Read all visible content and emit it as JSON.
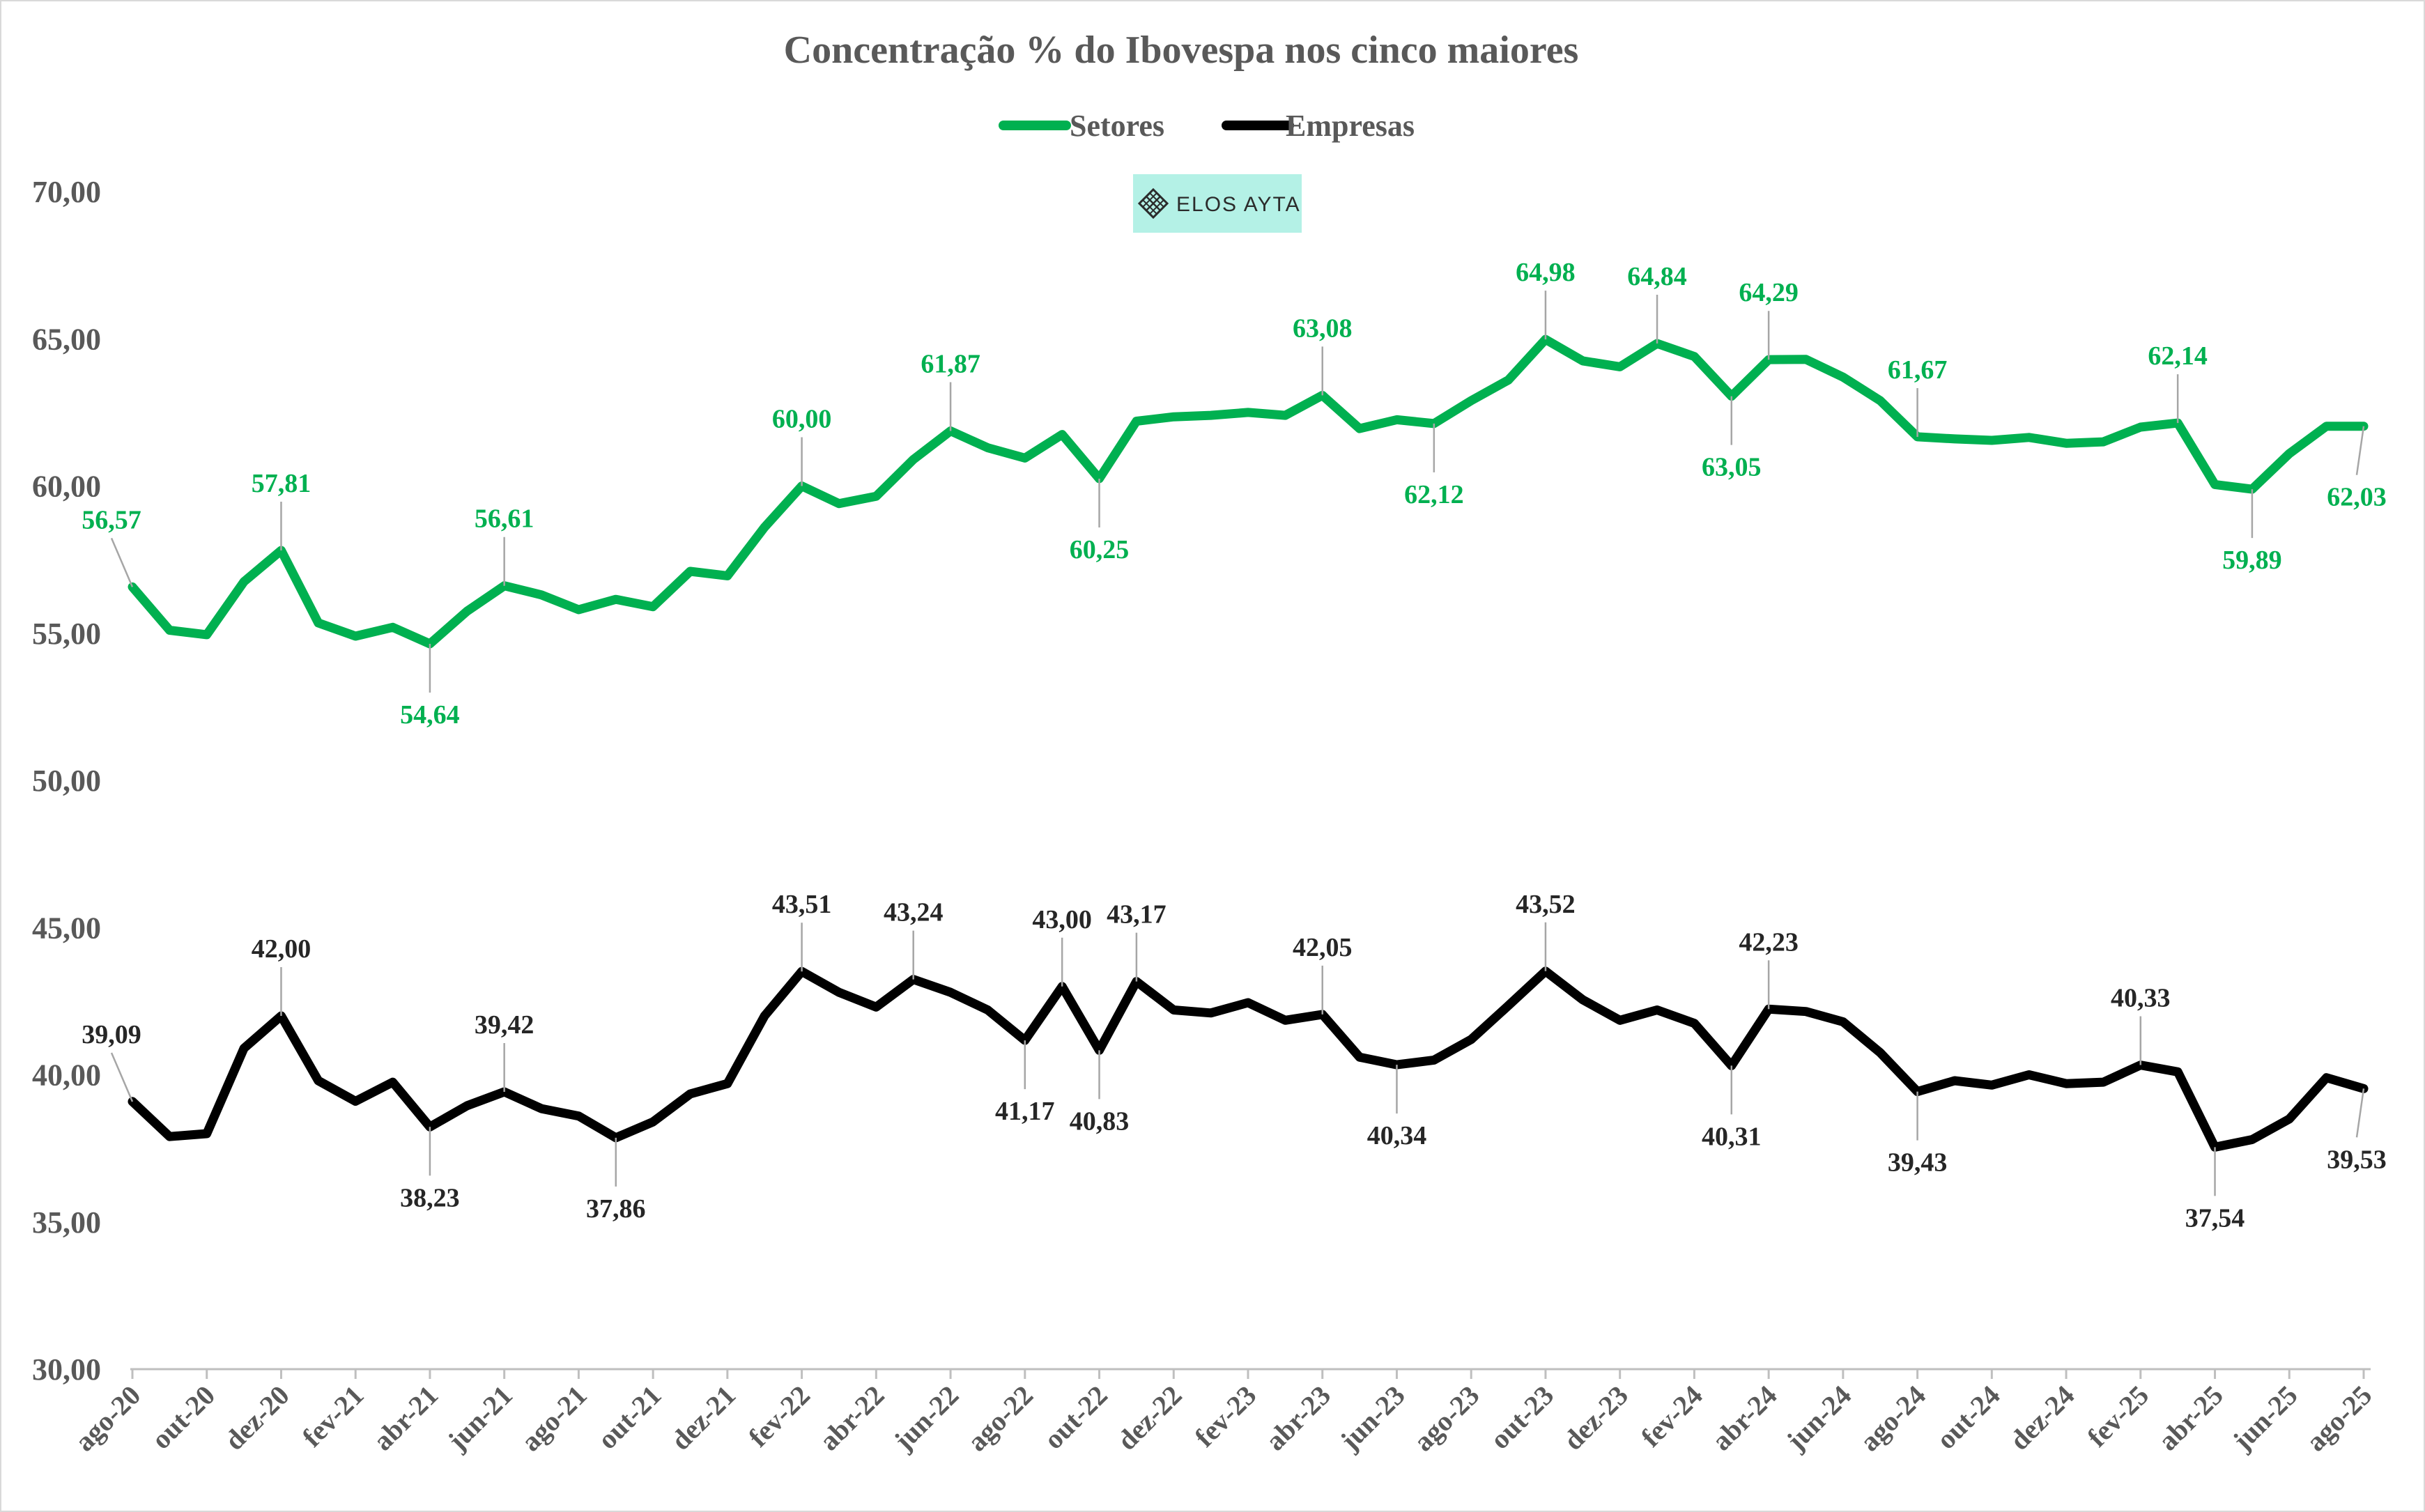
{
  "chart_data": {
    "type": "line",
    "title": "Concentração % do Ibovespa nos cinco maiores",
    "legend_position": "top",
    "grid": false,
    "ylim": [
      30,
      70
    ],
    "yticks": [
      "30,00",
      "35,00",
      "40,00",
      "45,00",
      "50,00",
      "55,00",
      "60,00",
      "65,00",
      "70,00"
    ],
    "ytick_values": [
      30,
      35,
      40,
      45,
      50,
      55,
      60,
      65,
      70
    ],
    "x": [
      "ago-20",
      "set-20",
      "out-20",
      "nov-20",
      "dez-20",
      "jan-21",
      "fev-21",
      "mar-21",
      "abr-21",
      "mai-21",
      "jun-21",
      "jul-21",
      "ago-21",
      "set-21",
      "out-21",
      "nov-21",
      "dez-21",
      "jan-22",
      "fev-22",
      "mar-22",
      "abr-22",
      "mai-22",
      "jun-22",
      "jul-22",
      "ago-22",
      "set-22",
      "out-22",
      "nov-22",
      "dez-22",
      "jan-23",
      "fev-23",
      "mar-23",
      "abr-23",
      "mai-23",
      "jun-23",
      "jul-23",
      "ago-23",
      "set-23",
      "out-23",
      "nov-23",
      "dez-23",
      "jan-24",
      "fev-24",
      "mar-24",
      "abr-24",
      "mai-24",
      "jun-24",
      "jul-24",
      "ago-24",
      "set-24",
      "out-24",
      "nov-24",
      "dez-24",
      "jan-25",
      "fev-25",
      "mar-25",
      "abr-25",
      "mai-25",
      "jun-25",
      "jul-25",
      "ago-25"
    ],
    "xtick_labels": [
      "ago-20",
      "out-20",
      "dez-20",
      "fev-21",
      "abr-21",
      "jun-21",
      "ago-21",
      "out-21",
      "dez-21",
      "fev-22",
      "abr-22",
      "jun-22",
      "ago-22",
      "out-22",
      "dez-22",
      "fev-23",
      "abr-23",
      "jun-23",
      "ago-23",
      "out-23",
      "dez-23",
      "fev-24",
      "abr-24",
      "jun-24",
      "ago-24",
      "out-24",
      "dez-24",
      "fev-25",
      "abr-25",
      "jun-25",
      "ago-25"
    ],
    "series": [
      {
        "name": "Setores",
        "color": "#00b050",
        "values": [
          56.57,
          55.1,
          54.95,
          56.75,
          57.81,
          55.35,
          54.9,
          55.2,
          54.64,
          55.75,
          56.61,
          56.3,
          55.8,
          56.15,
          55.9,
          57.1,
          56.95,
          58.6,
          60.0,
          59.4,
          59.65,
          60.9,
          61.87,
          61.3,
          60.95,
          61.75,
          60.25,
          62.2,
          62.35,
          62.4,
          62.5,
          62.4,
          63.08,
          61.95,
          62.25,
          62.12,
          62.9,
          63.6,
          64.98,
          64.25,
          64.05,
          64.84,
          64.4,
          63.05,
          64.29,
          64.3,
          63.7,
          62.9,
          61.67,
          61.6,
          61.55,
          61.65,
          61.45,
          61.5,
          62.0,
          62.14,
          60.05,
          59.89,
          61.1,
          62.03,
          62.03
        ],
        "labels": [
          {
            "index": 0,
            "text": "56,57"
          },
          {
            "index": 4,
            "text": "57,81"
          },
          {
            "index": 8,
            "text": "54,64"
          },
          {
            "index": 10,
            "text": "56,61"
          },
          {
            "index": 18,
            "text": "60,00"
          },
          {
            "index": 22,
            "text": "61,87"
          },
          {
            "index": 26,
            "text": "60,25"
          },
          {
            "index": 32,
            "text": "63,08"
          },
          {
            "index": 35,
            "text": "62,12"
          },
          {
            "index": 38,
            "text": "64,98"
          },
          {
            "index": 41,
            "text": "64,84"
          },
          {
            "index": 43,
            "text": "63,05"
          },
          {
            "index": 44,
            "text": "64,29"
          },
          {
            "index": 48,
            "text": "61,67"
          },
          {
            "index": 55,
            "text": "62,14"
          },
          {
            "index": 57,
            "text": "59,89"
          },
          {
            "index": 60,
            "text": "62,03"
          }
        ]
      },
      {
        "name": "Empresas",
        "color": "#000000",
        "values": [
          39.09,
          37.9,
          38.0,
          40.9,
          42.0,
          39.8,
          39.1,
          39.75,
          38.23,
          38.95,
          39.42,
          38.85,
          38.6,
          37.86,
          38.4,
          39.35,
          39.7,
          42.0,
          43.51,
          42.8,
          42.3,
          43.24,
          42.8,
          42.2,
          41.17,
          43.0,
          40.83,
          43.17,
          42.2,
          42.1,
          42.45,
          41.85,
          42.05,
          40.6,
          40.34,
          40.5,
          41.2,
          42.35,
          43.52,
          42.55,
          41.85,
          42.2,
          41.75,
          40.31,
          42.23,
          42.15,
          41.8,
          40.75,
          39.43,
          39.8,
          39.65,
          40.0,
          39.7,
          39.75,
          40.33,
          40.1,
          37.54,
          37.8,
          38.5,
          39.9,
          39.53
        ],
        "labels": [
          {
            "index": 0,
            "text": "39,09"
          },
          {
            "index": 4,
            "text": "42,00"
          },
          {
            "index": 8,
            "text": "38,23"
          },
          {
            "index": 10,
            "text": "39,42"
          },
          {
            "index": 13,
            "text": "37,86"
          },
          {
            "index": 18,
            "text": "43,51"
          },
          {
            "index": 21,
            "text": "43,24"
          },
          {
            "index": 24,
            "text": "41,17"
          },
          {
            "index": 25,
            "text": "43,00"
          },
          {
            "index": 26,
            "text": "40,83"
          },
          {
            "index": 27,
            "text": "43,17"
          },
          {
            "index": 32,
            "text": "42,05"
          },
          {
            "index": 34,
            "text": "40,34"
          },
          {
            "index": 38,
            "text": "43,52"
          },
          {
            "index": 43,
            "text": "40,31"
          },
          {
            "index": 44,
            "text": "42,23"
          },
          {
            "index": 48,
            "text": "39,43"
          },
          {
            "index": 54,
            "text": "40,33"
          },
          {
            "index": 56,
            "text": "37,54"
          },
          {
            "index": 60,
            "text": "39,53"
          }
        ]
      }
    ]
  },
  "logo": {
    "text": "ELOS AYTA",
    "background": "#b4f1e6"
  }
}
